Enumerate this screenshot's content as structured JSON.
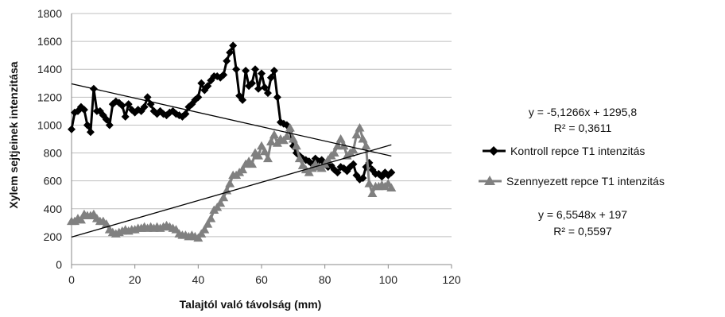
{
  "chart_data": {
    "type": "line",
    "title": "",
    "xlabel": "Talajtól  való távolság (mm)",
    "ylabel": "Xylem sejtjeinek intenzitása",
    "xlim": [
      0,
      120
    ],
    "ylim": [
      0,
      1800
    ],
    "x_ticks": [
      "0",
      "20",
      "40",
      "60",
      "80",
      "100",
      "120"
    ],
    "y_ticks": [
      "0",
      "200",
      "400",
      "600",
      "800",
      "1000",
      "1200",
      "1400",
      "1600",
      "1800"
    ],
    "grid": "horizontal",
    "legend_position": "right",
    "series": [
      {
        "name": "Kontroll repce T1 intenzitás",
        "color": "#000000",
        "marker": "diamond",
        "x": [
          0,
          1,
          2,
          3,
          4,
          5,
          6,
          7,
          8,
          9,
          10,
          11,
          12,
          13,
          14,
          15,
          16,
          17,
          18,
          19,
          20,
          21,
          22,
          23,
          24,
          25,
          26,
          27,
          28,
          29,
          30,
          31,
          32,
          33,
          34,
          35,
          36,
          37,
          38,
          39,
          40,
          41,
          42,
          43,
          44,
          45,
          46,
          47,
          48,
          49,
          50,
          51,
          52,
          53,
          54,
          55,
          56,
          57,
          58,
          59,
          60,
          61,
          62,
          63,
          64,
          65,
          66,
          67,
          68,
          69,
          70,
          71,
          72,
          73,
          74,
          75,
          76,
          77,
          78,
          79,
          80,
          81,
          82,
          83,
          84,
          85,
          86,
          87,
          88,
          89,
          90,
          91,
          92,
          93,
          94,
          95,
          96,
          97,
          98,
          99,
          100,
          101
        ],
        "y": [
          970,
          1090,
          1100,
          1130,
          1110,
          1000,
          950,
          1260,
          1100,
          1100,
          1070,
          1040,
          1000,
          1150,
          1170,
          1160,
          1140,
          1060,
          1150,
          1110,
          1090,
          1110,
          1100,
          1130,
          1200,
          1150,
          1100,
          1080,
          1100,
          1080,
          1070,
          1090,
          1100,
          1080,
          1070,
          1060,
          1080,
          1130,
          1150,
          1180,
          1200,
          1300,
          1250,
          1280,
          1320,
          1350,
          1350,
          1340,
          1360,
          1460,
          1520,
          1570,
          1400,
          1210,
          1180,
          1390,
          1280,
          1300,
          1400,
          1260,
          1370,
          1270,
          1230,
          1340,
          1390,
          1200,
          1020,
          1010,
          1000,
          960,
          850,
          800,
          780,
          760,
          750,
          740,
          720,
          760,
          740,
          750,
          720,
          700,
          710,
          680,
          660,
          700,
          690,
          670,
          700,
          720,
          640,
          610,
          620,
          700,
          730,
          680,
          650,
          650,
          630,
          660,
          640,
          660
        ]
      },
      {
        "name": "Szennyezett repce T1 intenzitás",
        "color": "#808080",
        "marker": "triangle",
        "x": [
          0,
          1,
          2,
          3,
          4,
          5,
          6,
          7,
          8,
          9,
          10,
          11,
          12,
          13,
          14,
          15,
          16,
          17,
          18,
          19,
          20,
          21,
          22,
          23,
          24,
          25,
          26,
          27,
          28,
          29,
          30,
          31,
          32,
          33,
          34,
          35,
          36,
          37,
          38,
          39,
          40,
          41,
          42,
          43,
          44,
          45,
          46,
          47,
          48,
          49,
          50,
          51,
          52,
          53,
          54,
          55,
          56,
          57,
          58,
          59,
          60,
          61,
          62,
          63,
          64,
          65,
          66,
          67,
          68,
          69,
          70,
          71,
          72,
          73,
          74,
          75,
          76,
          77,
          78,
          79,
          80,
          81,
          82,
          83,
          84,
          85,
          86,
          87,
          88,
          89,
          90,
          91,
          92,
          93,
          94,
          95,
          96,
          97,
          98,
          99,
          100,
          101
        ],
        "y": [
          310,
          310,
          330,
          320,
          360,
          350,
          350,
          360,
          330,
          310,
          310,
          290,
          250,
          230,
          220,
          230,
          240,
          250,
          240,
          250,
          250,
          260,
          260,
          270,
          260,
          270,
          260,
          270,
          260,
          270,
          280,
          270,
          260,
          250,
          220,
          210,
          210,
          200,
          210,
          200,
          190,
          220,
          250,
          290,
          330,
          390,
          410,
          440,
          480,
          530,
          580,
          640,
          640,
          660,
          680,
          720,
          740,
          720,
          800,
          780,
          850,
          810,
          760,
          880,
          930,
          870,
          900,
          890,
          920,
          980,
          900,
          850,
          760,
          710,
          680,
          660,
          690,
          720,
          700,
          690,
          720,
          750,
          780,
          800,
          850,
          900,
          850,
          780,
          800,
          820,
          930,
          980,
          900,
          850,
          580,
          510,
          560,
          560,
          570,
          560,
          580,
          550
        ]
      }
    ],
    "trendlines": [
      {
        "series": "Kontroll repce T1 intenzitás",
        "slope": -5.1266,
        "intercept": 1295.8,
        "equation": "y = -5,1266x + 1295,8",
        "r2": "R² = 0,3611"
      },
      {
        "series": "Szennyezett repce T1 intenzitás",
        "slope": 6.5548,
        "intercept": 197,
        "equation": "y = 6,5548x + 197",
        "r2": "R² = 0,5597"
      }
    ]
  }
}
